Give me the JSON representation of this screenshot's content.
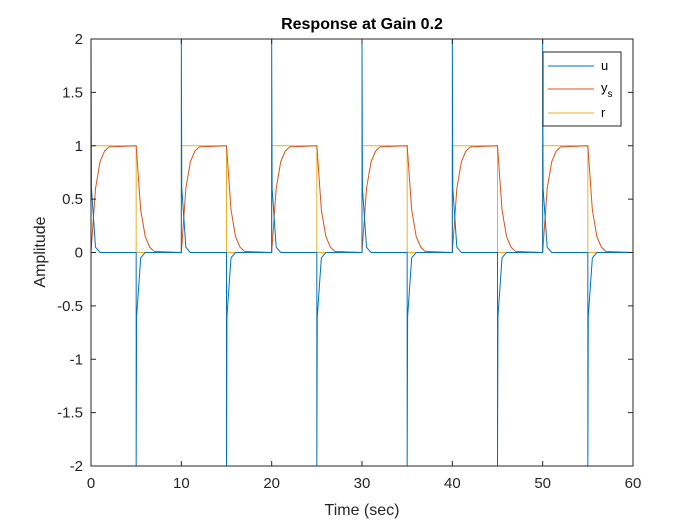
{
  "chart_data": {
    "type": "line",
    "title": "Response at Gain 0.2",
    "xlabel": "Time (sec)",
    "ylabel": "Amplitude",
    "xlim": [
      0,
      60
    ],
    "ylim": [
      -2,
      2
    ],
    "xticks": [
      "0",
      "10",
      "20",
      "30",
      "40",
      "50",
      "60"
    ],
    "yticks": [
      "2",
      "1.5",
      "1",
      "0.5",
      "0",
      "-0.5",
      "-1",
      "-1.5",
      "-2"
    ],
    "grid": false,
    "legend_position": "top-right",
    "reference": {
      "period": 10,
      "high_duration": 5,
      "high": 1,
      "low": 0,
      "start": 0,
      "end": 60
    },
    "series": [
      {
        "name": "u",
        "color": "#0072BD",
        "description_points": [
          [
            0,
            2
          ],
          [
            0.05,
            0.6
          ],
          [
            0.5,
            0.05
          ],
          [
            1,
            0.0
          ],
          [
            5,
            0.0
          ],
          [
            5,
            -2
          ],
          [
            5.05,
            -0.6
          ],
          [
            5.5,
            -0.05
          ],
          [
            6,
            0.0
          ],
          [
            10,
            0.0
          ]
        ]
      },
      {
        "name": "y",
        "name_subscript": "s",
        "color": "#D95319",
        "description_points": [
          [
            0,
            0
          ],
          [
            0.5,
            0.6
          ],
          [
            1,
            0.85
          ],
          [
            1.5,
            0.95
          ],
          [
            2,
            0.99
          ],
          [
            5,
            1.0
          ],
          [
            5.5,
            0.4
          ],
          [
            6,
            0.15
          ],
          [
            6.5,
            0.05
          ],
          [
            7,
            0.01
          ],
          [
            10,
            0.0
          ]
        ]
      },
      {
        "name": "r",
        "color": "#EDB120"
      }
    ]
  }
}
